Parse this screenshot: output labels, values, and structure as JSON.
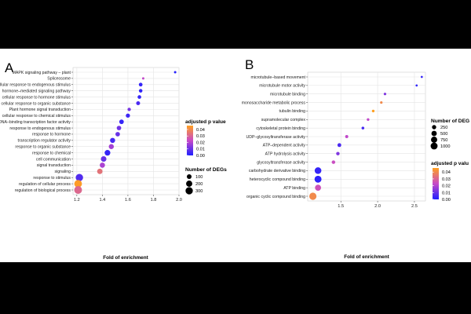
{
  "chart_data": [
    {
      "type": "scatter",
      "panel_label": "A",
      "xlabel": "Fold of enrichment",
      "xlim": [
        1.17,
        2.0
      ],
      "xticks": [
        "1.2",
        "1.4",
        "1.6",
        "1.8",
        "2.0"
      ],
      "xtick_values": [
        1.2,
        1.4,
        1.6,
        1.8,
        2.0
      ],
      "grid": true,
      "points": [
        {
          "term": "MAPK signaling pathway – plant",
          "fold": 1.97,
          "padj": 0.001,
          "degs": 15
        },
        {
          "term": "Spliceosome",
          "fold": 1.72,
          "padj": 0.022,
          "degs": 15
        },
        {
          "term": "cellular response to endogenous stimulus",
          "fold": 1.7,
          "padj": 0.003,
          "degs": 50
        },
        {
          "term": "hormone–mediated signaling pathway",
          "fold": 1.7,
          "padj": 0.002,
          "degs": 45
        },
        {
          "term": "cellular response to hormone stimulus",
          "fold": 1.69,
          "padj": 0.003,
          "degs": 48
        },
        {
          "term": "cellular response to organic substance",
          "fold": 1.68,
          "padj": 0.006,
          "degs": 60
        },
        {
          "term": "Plant hormone signal transduction",
          "fold": 1.61,
          "padj": 0.012,
          "degs": 40
        },
        {
          "term": "cellular response to chemical stimulus",
          "fold": 1.6,
          "padj": 0.004,
          "degs": 70
        },
        {
          "term": "DNA–binding transcription factor activity",
          "fold": 1.55,
          "padj": 0.003,
          "degs": 90
        },
        {
          "term": "response to endogenous stimulus",
          "fold": 1.53,
          "padj": 0.011,
          "degs": 85
        },
        {
          "term": "response to hormone",
          "fold": 1.52,
          "padj": 0.01,
          "degs": 85
        },
        {
          "term": "transcription regulator activity",
          "fold": 1.48,
          "padj": 0.005,
          "degs": 120
        },
        {
          "term": "response to organic substance",
          "fold": 1.47,
          "padj": 0.018,
          "degs": 120
        },
        {
          "term": "response to chemical",
          "fold": 1.44,
          "padj": 0.003,
          "degs": 160
        },
        {
          "term": "cell communication",
          "fold": 1.41,
          "padj": 0.01,
          "degs": 150
        },
        {
          "term": "signal transduction",
          "fold": 1.4,
          "padj": 0.019,
          "degs": 130
        },
        {
          "term": "signaling",
          "fold": 1.38,
          "padj": 0.034,
          "degs": 140
        },
        {
          "term": "response to stimulus",
          "fold": 1.22,
          "padj": 0.007,
          "degs": 310
        },
        {
          "term": "regulation of cellular process",
          "fold": 1.21,
          "padj": 0.045,
          "degs": 340
        },
        {
          "term": "regulation of biological process",
          "fold": 1.21,
          "padj": 0.031,
          "degs": 350
        }
      ],
      "legend_color": {
        "title": "adjusted p value",
        "ticks": [
          "0.04",
          "0.03",
          "0.02",
          "0.01",
          "0.00"
        ],
        "tick_values": [
          0.04,
          0.03,
          0.02,
          0.01,
          0.0
        ],
        "low_color": "#1f1fff",
        "mid_color": "#c84ac8",
        "high_color": "#ffa020",
        "range": [
          0.0,
          0.046
        ]
      },
      "legend_size": {
        "title": "Number of DEGs",
        "labels": [
          "100",
          "200",
          "300"
        ],
        "values": [
          100,
          200,
          300
        ]
      }
    },
    {
      "type": "scatter",
      "panel_label": "B",
      "xlabel": "Fold of enrichment",
      "xlim": [
        1.05,
        2.65
      ],
      "xticks": [
        "1.5",
        "2.0",
        "2.5"
      ],
      "xtick_values": [
        1.5,
        2.0,
        2.5
      ],
      "grid": true,
      "points": [
        {
          "term": "microtubule–based movement",
          "fold": 2.6,
          "padj": 0.003,
          "degs": 20
        },
        {
          "term": "microtubule motor activity",
          "fold": 2.53,
          "padj": 0.002,
          "degs": 20
        },
        {
          "term": "microtubule binding",
          "fold": 2.1,
          "padj": 0.013,
          "degs": 40
        },
        {
          "term": "monosaccharide metabolic process",
          "fold": 2.05,
          "padj": 0.04,
          "degs": 40
        },
        {
          "term": "tubulin binding",
          "fold": 1.94,
          "padj": 0.046,
          "degs": 50
        },
        {
          "term": "supramolecular complex",
          "fold": 1.87,
          "padj": 0.022,
          "degs": 50
        },
        {
          "term": "cytoskeletal protein binding",
          "fold": 1.8,
          "padj": 0.005,
          "degs": 60
        },
        {
          "term": "UDP–glycosyltransferase activity",
          "fold": 1.58,
          "padj": 0.022,
          "degs": 90
        },
        {
          "term": "ATP–dependent activity",
          "fold": 1.48,
          "padj": 0.006,
          "degs": 180
        },
        {
          "term": "ATP hydrolysis activity",
          "fold": 1.46,
          "padj": 0.013,
          "degs": 130
        },
        {
          "term": "glycosyltransferase activity",
          "fold": 1.4,
          "padj": 0.024,
          "degs": 140
        },
        {
          "term": "carbohydrate derivative binding",
          "fold": 1.19,
          "padj": 0.003,
          "degs": 900
        },
        {
          "term": "heterocyclic compound binding",
          "fold": 1.19,
          "padj": 0.002,
          "degs": 1000
        },
        {
          "term": "ATP binding",
          "fold": 1.19,
          "padj": 0.025,
          "degs": 700
        },
        {
          "term": "organic cyclic compound binding",
          "fold": 1.12,
          "padj": 0.04,
          "degs": 1100
        }
      ],
      "legend_size": {
        "title": "Number of DEG",
        "labels": [
          "250",
          "500",
          "750",
          "1000"
        ],
        "values": [
          250,
          500,
          750,
          1000
        ]
      },
      "legend_color": {
        "title": "adjusted p valu",
        "ticks": [
          "0.04",
          "0.03",
          "0.02",
          "0.01",
          "0.00"
        ],
        "tick_values": [
          0.04,
          0.03,
          0.02,
          0.01,
          0.0
        ],
        "low_color": "#1f1fff",
        "mid_color": "#c84ac8",
        "high_color": "#ffa020",
        "range": [
          0.0,
          0.046
        ]
      }
    }
  ]
}
